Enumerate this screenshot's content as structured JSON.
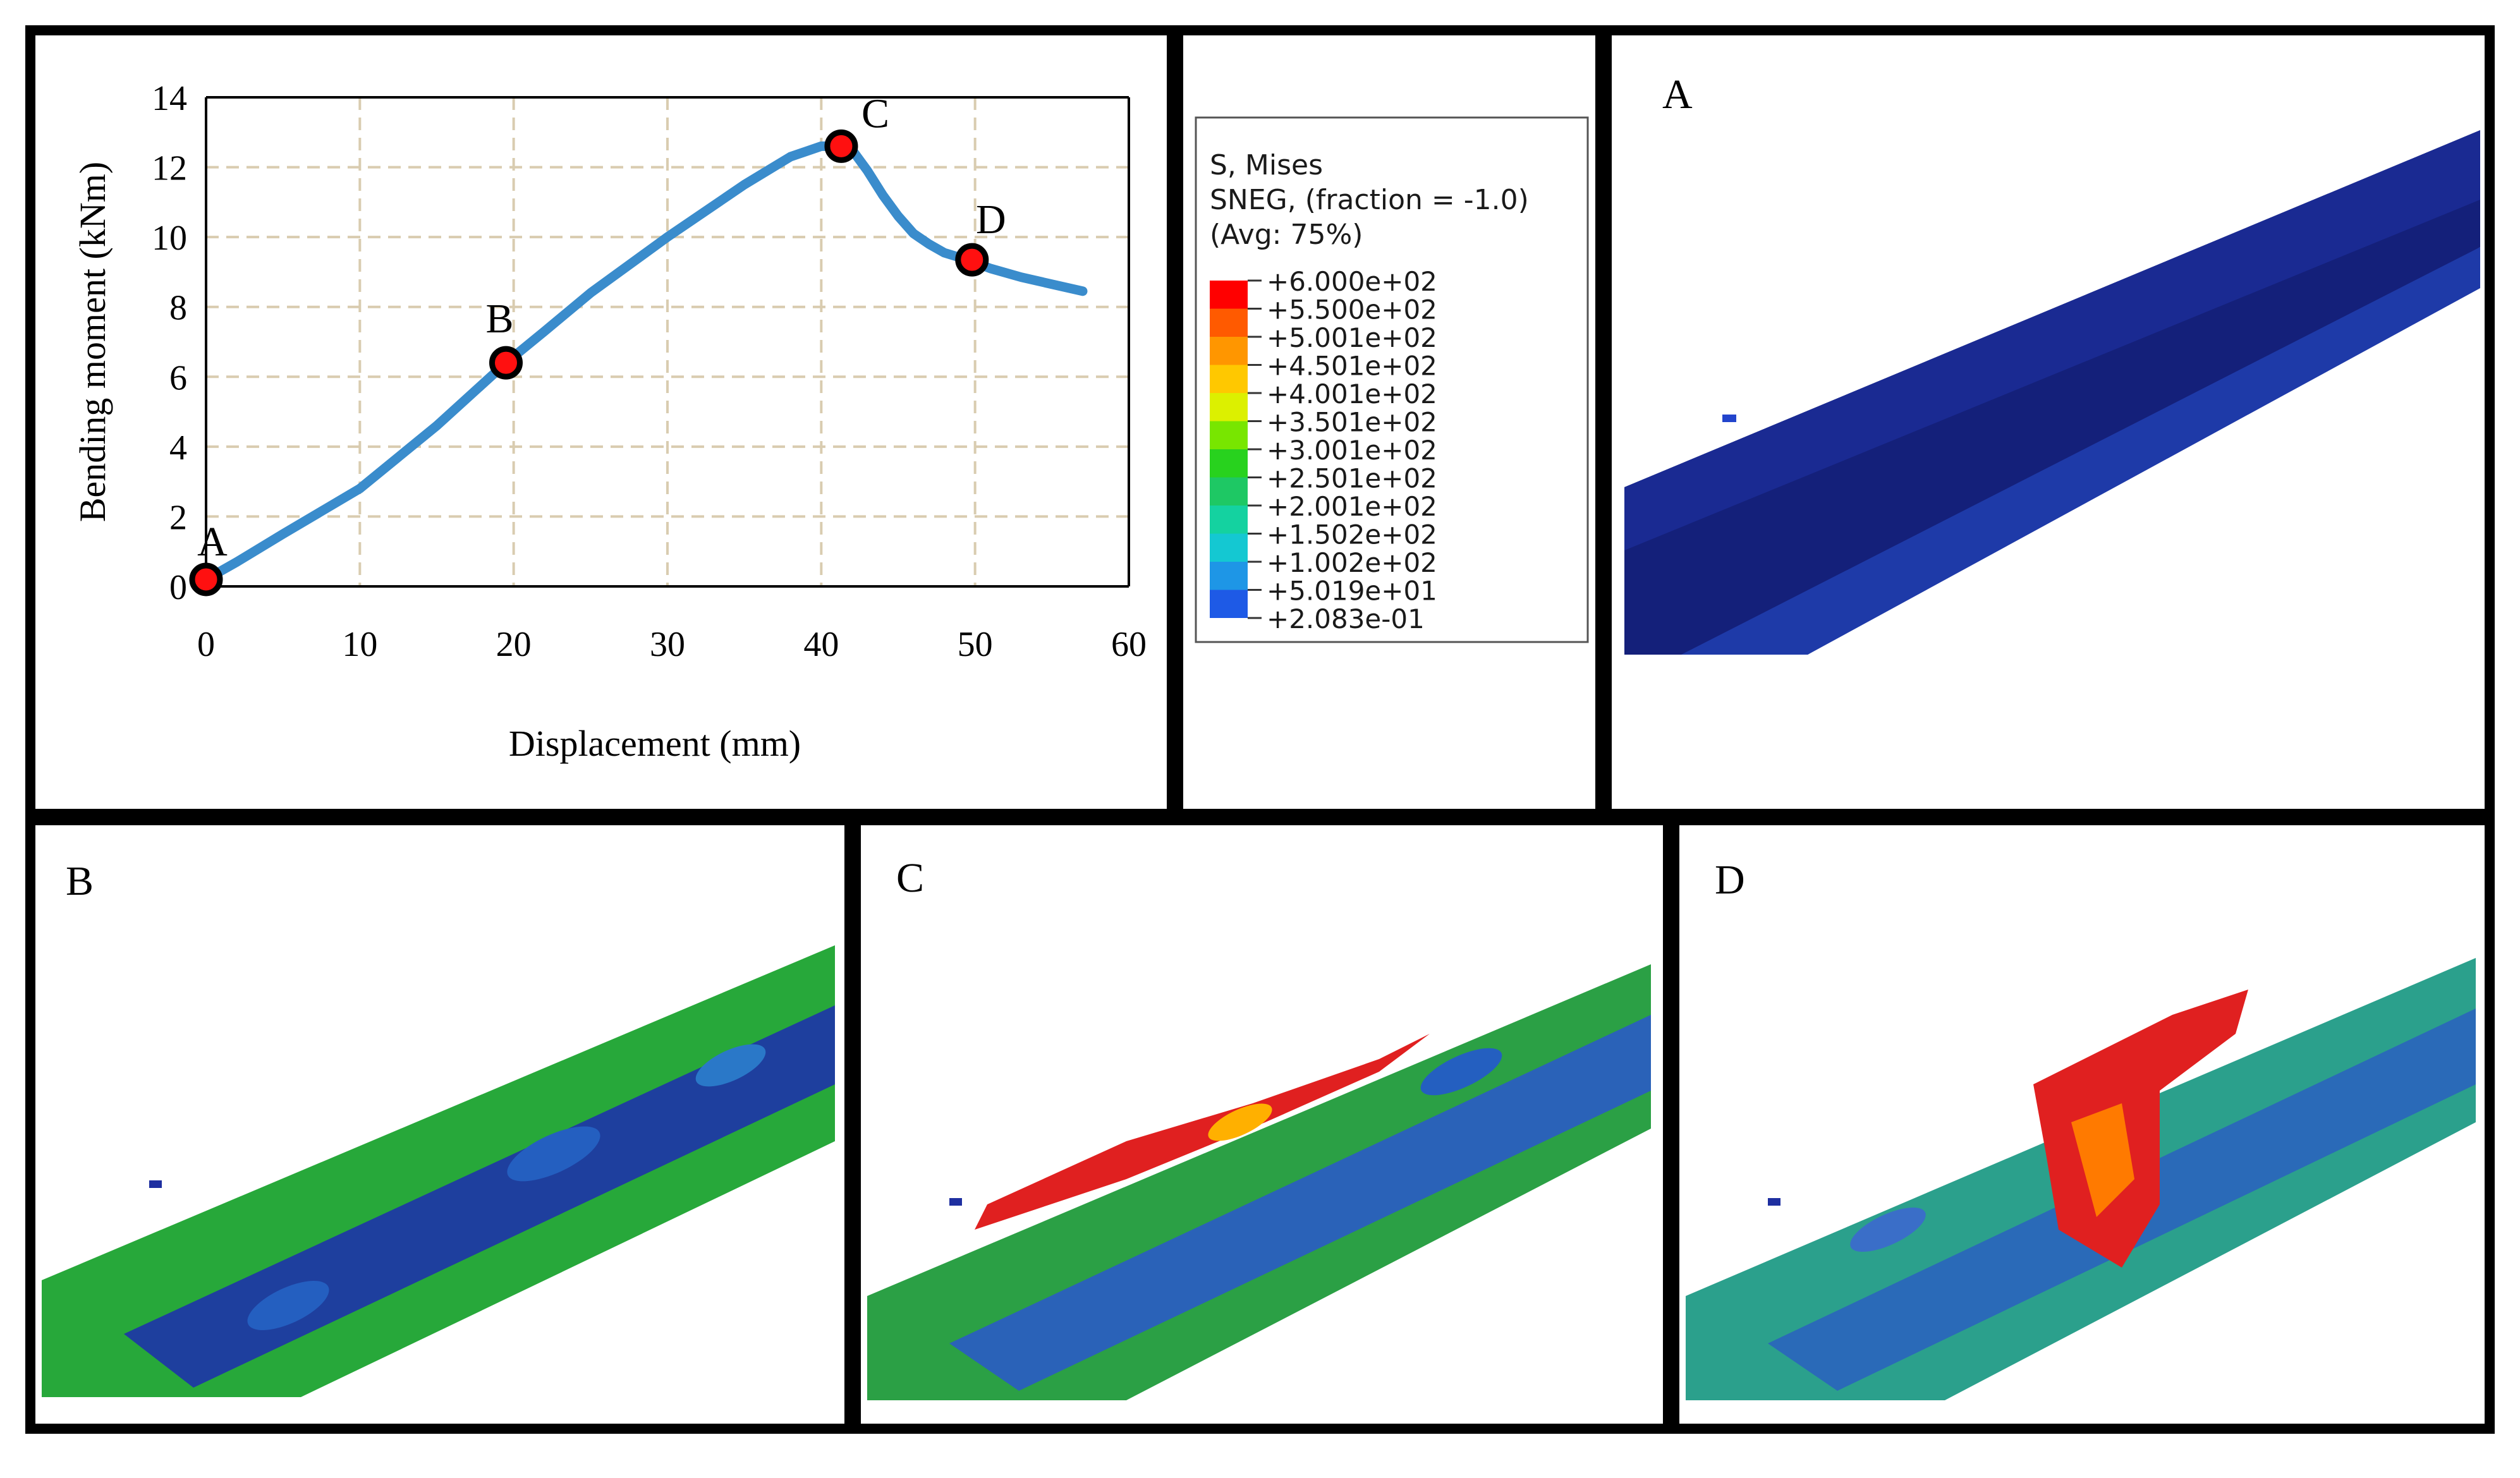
{
  "chart_data": {
    "type": "line",
    "title": "",
    "xlabel": "Displacement (mm)",
    "ylabel": "Bending moment (kNm)",
    "xlim": [
      0,
      60
    ],
    "ylim": [
      0,
      14
    ],
    "xticks": [
      0,
      10,
      20,
      30,
      40,
      50,
      60
    ],
    "yticks": [
      0,
      2,
      4,
      6,
      8,
      10,
      12,
      14
    ],
    "grid": true,
    "series": [
      {
        "name": "Bending moment",
        "color": "#3a8ccc",
        "x": [
          0,
          2,
          5,
          10,
          15,
          19.5,
          22,
          25,
          30,
          35,
          38,
          40,
          41.3,
          42,
          43,
          44,
          45,
          46,
          47,
          48,
          49.5,
          51,
          53,
          55,
          57
        ],
        "y": [
          0.2,
          0.7,
          1.5,
          2.8,
          4.6,
          6.4,
          7.3,
          8.4,
          10.0,
          11.5,
          12.3,
          12.6,
          12.6,
          12.5,
          11.9,
          11.2,
          10.6,
          10.1,
          9.8,
          9.55,
          9.35,
          9.1,
          8.85,
          8.65,
          8.45
        ]
      }
    ],
    "points": [
      {
        "label": "A",
        "x": 0,
        "y": 0.2
      },
      {
        "label": "B",
        "x": 19.5,
        "y": 6.4
      },
      {
        "label": "C",
        "x": 41.3,
        "y": 12.6
      },
      {
        "label": "D",
        "x": 49.8,
        "y": 9.35
      }
    ]
  },
  "legend": {
    "title_lines": [
      "S, Mises",
      "SNEG, (fraction = -1.0)",
      "(Avg: 75%)"
    ],
    "levels": [
      "+6.000e+02",
      "+5.500e+02",
      "+5.001e+02",
      "+4.501e+02",
      "+4.001e+02",
      "+3.501e+02",
      "+3.001e+02",
      "+2.501e+02",
      "+2.001e+02",
      "+1.502e+02",
      "+1.002e+02",
      "+5.019e+01",
      "+2.083e-01"
    ],
    "colors": [
      "#ff0000",
      "#ff5a00",
      "#ff9600",
      "#ffc800",
      "#dcf000",
      "#78e600",
      "#28d21e",
      "#1ec864",
      "#14d2a0",
      "#14c8d2",
      "#1e96e6",
      "#1e5ae6",
      "#0000ff"
    ]
  },
  "panels": {
    "a_label": "A",
    "b_label": "B",
    "c_label": "C",
    "d_label": "D"
  }
}
